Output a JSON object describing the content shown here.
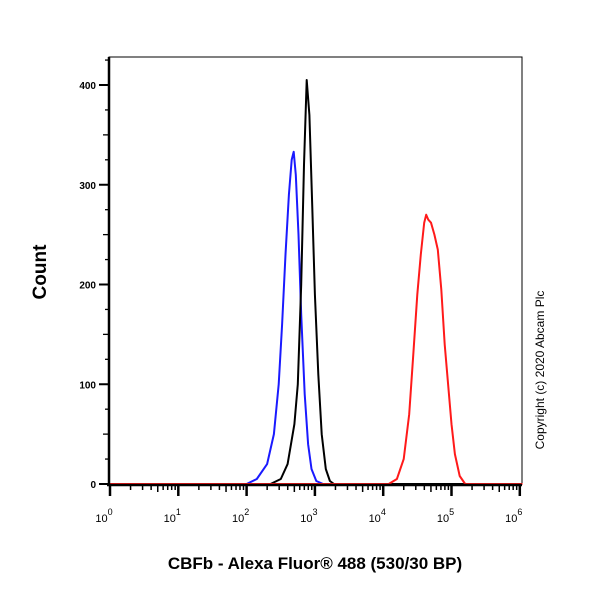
{
  "chart_data": {
    "type": "line",
    "title": "",
    "xlabel": "CBFb - Alexa Fluor® 488 (530/30 BP)",
    "ylabel": "Count",
    "x_scale": "log10",
    "xlim_log10": [
      0,
      6
    ],
    "ylim": [
      0,
      428
    ],
    "yticks": [
      0,
      100,
      200,
      300,
      400
    ],
    "xticks": [
      {
        "base": "10",
        "exp": "0",
        "log10": 0
      },
      {
        "base": "10",
        "exp": "1",
        "log10": 1
      },
      {
        "base": "10",
        "exp": "2",
        "log10": 2
      },
      {
        "base": "10",
        "exp": "3",
        "log10": 3
      },
      {
        "base": "10",
        "exp": "4",
        "log10": 4
      },
      {
        "base": "10",
        "exp": "5",
        "log10": 5
      },
      {
        "base": "10",
        "exp": "6",
        "log10": 6
      }
    ],
    "grid": false,
    "annotation": "Copyright (c) 2020 Abcam Plc",
    "series": [
      {
        "name": "blue",
        "color": "#1a1aff",
        "points_log10x_y": [
          [
            0,
            0
          ],
          [
            2.0,
            0
          ],
          [
            2.15,
            5
          ],
          [
            2.3,
            20
          ],
          [
            2.4,
            50
          ],
          [
            2.47,
            100
          ],
          [
            2.52,
            160
          ],
          [
            2.57,
            230
          ],
          [
            2.62,
            290
          ],
          [
            2.66,
            325
          ],
          [
            2.69,
            333
          ],
          [
            2.72,
            310
          ],
          [
            2.76,
            250
          ],
          [
            2.8,
            170
          ],
          [
            2.85,
            90
          ],
          [
            2.9,
            40
          ],
          [
            2.95,
            15
          ],
          [
            3.02,
            3
          ],
          [
            3.12,
            0
          ],
          [
            6.05,
            0
          ]
        ]
      },
      {
        "name": "black",
        "color": "#000000",
        "points_log10x_y": [
          [
            0,
            0
          ],
          [
            2.35,
            0
          ],
          [
            2.5,
            5
          ],
          [
            2.6,
            20
          ],
          [
            2.7,
            60
          ],
          [
            2.75,
            100
          ],
          [
            2.8,
            200
          ],
          [
            2.84,
            320
          ],
          [
            2.88,
            405
          ],
          [
            2.92,
            370
          ],
          [
            2.96,
            280
          ],
          [
            3.0,
            190
          ],
          [
            3.05,
            110
          ],
          [
            3.1,
            50
          ],
          [
            3.16,
            15
          ],
          [
            3.22,
            3
          ],
          [
            3.28,
            0
          ],
          [
            6.05,
            0
          ]
        ]
      },
      {
        "name": "red",
        "color": "#ff1a1a",
        "points_log10x_y": [
          [
            0,
            0
          ],
          [
            4.08,
            0
          ],
          [
            4.2,
            5
          ],
          [
            4.3,
            25
          ],
          [
            4.38,
            70
          ],
          [
            4.44,
            130
          ],
          [
            4.5,
            190
          ],
          [
            4.55,
            230
          ],
          [
            4.6,
            262
          ],
          [
            4.63,
            270
          ],
          [
            4.66,
            265
          ],
          [
            4.7,
            262
          ],
          [
            4.75,
            250
          ],
          [
            4.8,
            235
          ],
          [
            4.85,
            195
          ],
          [
            4.9,
            140
          ],
          [
            4.95,
            100
          ],
          [
            5.0,
            60
          ],
          [
            5.05,
            30
          ],
          [
            5.12,
            8
          ],
          [
            5.2,
            0
          ],
          [
            6.05,
            0
          ]
        ]
      }
    ]
  }
}
